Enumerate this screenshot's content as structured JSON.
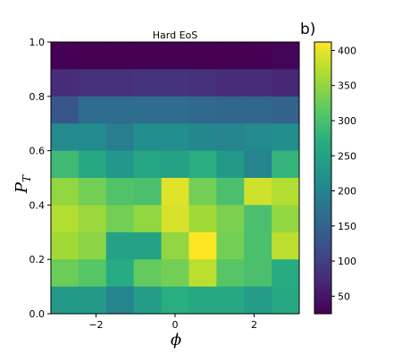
{
  "chart_data": {
    "type": "heatmap",
    "title": "Hard EoS",
    "panel_label": "b)",
    "xlabel": "ϕ",
    "ylabel": "P",
    "ylabel_subscript": "T",
    "xlim": [
      -3.14,
      3.14
    ],
    "ylim": [
      0.0,
      1.0
    ],
    "x_ticks": [
      -2,
      0,
      2
    ],
    "x_tick_labels": [
      "−2",
      "0",
      "2"
    ],
    "y_ticks": [
      0.0,
      0.2,
      0.4,
      0.6,
      0.8,
      1.0
    ],
    "y_tick_labels": [
      "0.0",
      "0.2",
      "0.4",
      "0.6",
      "0.8",
      "1.0"
    ],
    "colormap": "viridis",
    "colorbar": {
      "range": [
        25,
        412
      ],
      "ticks": [
        50,
        100,
        150,
        200,
        250,
        300,
        350,
        400
      ],
      "tick_labels": [
        "50",
        "100",
        "150",
        "200",
        "250",
        "300",
        "350",
        "400"
      ]
    },
    "grid": false,
    "n_cols": 9,
    "n_rows": 10,
    "row_order": "top-to-bottom (P_T 0.9-1.0 first)",
    "values": [
      [
        25,
        25,
        25,
        25,
        25,
        25,
        25,
        25,
        30
      ],
      [
        75,
        80,
        80,
        85,
        85,
        80,
        75,
        75,
        70
      ],
      [
        130,
        165,
        165,
        165,
        165,
        160,
        155,
        155,
        150
      ],
      [
        210,
        210,
        190,
        215,
        215,
        205,
        200,
        210,
        215
      ],
      [
        290,
        260,
        230,
        255,
        250,
        270,
        235,
        200,
        280
      ],
      [
        350,
        330,
        305,
        300,
        395,
        330,
        300,
        385,
        370
      ],
      [
        370,
        355,
        330,
        350,
        390,
        360,
        335,
        300,
        350
      ],
      [
        360,
        345,
        250,
        250,
        350,
        412,
        330,
        300,
        375
      ],
      [
        325,
        310,
        265,
        320,
        330,
        375,
        310,
        300,
        265
      ],
      [
        235,
        235,
        200,
        240,
        270,
        260,
        260,
        240,
        260
      ]
    ]
  }
}
